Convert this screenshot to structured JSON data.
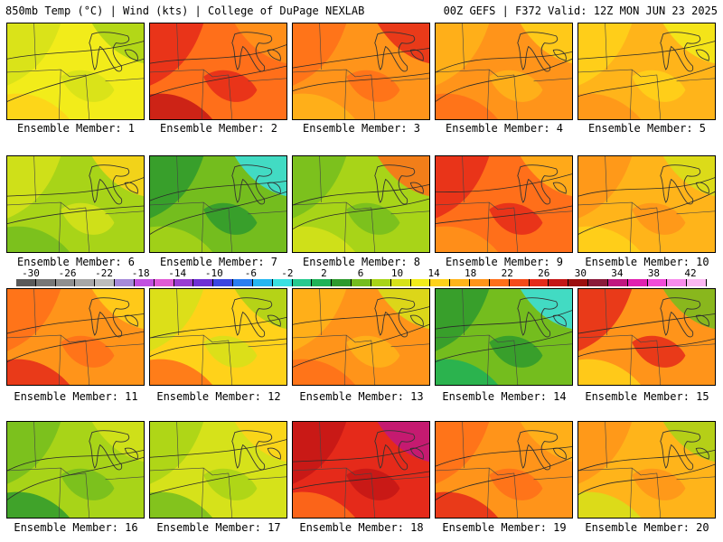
{
  "header": {
    "left_title": "850mb Temp (°C) | Wind (kts) | College of DuPage NEXLAB",
    "right_title": "00Z GEFS | F372 Valid: 12Z MON JUN 23 2025"
  },
  "legend": {
    "ticks": [
      "-30",
      "-26",
      "-22",
      "-18",
      "-14",
      "-10",
      "-6",
      "-2",
      "2",
      "6",
      "10",
      "14",
      "18",
      "22",
      "26",
      "30",
      "34",
      "38",
      "42"
    ],
    "colors": [
      "#5a5a5a",
      "#777777",
      "#8f8f8f",
      "#a7a7a7",
      "#bdbdbd",
      "#a68ad9",
      "#c24fe0",
      "#e05ad6",
      "#9a3cd2",
      "#6f2fd4",
      "#3b46e0",
      "#2a7ef0",
      "#26b6f0",
      "#39e0e0",
      "#27c98f",
      "#1fb257",
      "#2e9a2e",
      "#74bd1e",
      "#a8d418",
      "#d6e21a",
      "#f2ec1a",
      "#ffd21a",
      "#ffb41a",
      "#ff941a",
      "#ff6f1a",
      "#f54b1a",
      "#e52a1a",
      "#c41616",
      "#9c0f0f",
      "#8a1a3a",
      "#c01780",
      "#e020b0",
      "#f04cd8",
      "#f78cec",
      "#fbb8f2"
    ]
  },
  "members": [
    {
      "label": "Ensemble Member: 1",
      "palette": [
        "#f2ec1a",
        "#d6e21a",
        "#ffd21a",
        "#a8d418"
      ]
    },
    {
      "label": "Ensemble Member: 2",
      "palette": [
        "#ff6f1a",
        "#e52a1a",
        "#c41616",
        "#ff941a"
      ]
    },
    {
      "label": "Ensemble Member: 3",
      "palette": [
        "#ff941a",
        "#ff6f1a",
        "#ffb41a",
        "#e52a1a"
      ]
    },
    {
      "label": "Ensemble Member: 4",
      "palette": [
        "#ff941a",
        "#ffb41a",
        "#ff6f1a",
        "#ffd21a"
      ]
    },
    {
      "label": "Ensemble Member: 5",
      "palette": [
        "#ffb41a",
        "#ffd21a",
        "#ff941a",
        "#f2ec1a"
      ]
    },
    {
      "label": "Ensemble Member: 6",
      "palette": [
        "#a8d418",
        "#d6e21a",
        "#74bd1e",
        "#ffd21a"
      ]
    },
    {
      "label": "Ensemble Member: 7",
      "palette": [
        "#74bd1e",
        "#2e9a2e",
        "#a8d418",
        "#39e0e0"
      ]
    },
    {
      "label": "Ensemble Member: 8",
      "palette": [
        "#a8d418",
        "#74bd1e",
        "#d6e21a",
        "#ff6f1a"
      ]
    },
    {
      "label": "Ensemble Member: 9",
      "palette": [
        "#ff6f1a",
        "#e52a1a",
        "#ff941a",
        "#ffb41a"
      ]
    },
    {
      "label": "Ensemble Member: 10",
      "palette": [
        "#ffb41a",
        "#ff941a",
        "#ffd21a",
        "#d6e21a"
      ]
    },
    {
      "label": "Ensemble Member: 11",
      "palette": [
        "#ff941a",
        "#ff6f1a",
        "#e52a1a",
        "#ffd21a"
      ]
    },
    {
      "label": "Ensemble Member: 12",
      "palette": [
        "#ffd21a",
        "#d6e21a",
        "#ff6f1a",
        "#a8d418"
      ]
    },
    {
      "label": "Ensemble Member: 13",
      "palette": [
        "#ff941a",
        "#ffb41a",
        "#ff6f1a",
        "#d6e21a"
      ]
    },
    {
      "label": "Ensemble Member: 14",
      "palette": [
        "#74bd1e",
        "#2e9a2e",
        "#1fb257",
        "#39e0e0"
      ]
    },
    {
      "label": "Ensemble Member: 15",
      "palette": [
        "#ff941a",
        "#e52a1a",
        "#ffd21a",
        "#74bd1e"
      ]
    },
    {
      "label": "Ensemble Member: 16",
      "palette": [
        "#a8d418",
        "#74bd1e",
        "#2e9a2e",
        "#d6e21a"
      ]
    },
    {
      "label": "Ensemble Member: 17",
      "palette": [
        "#d6e21a",
        "#a8d418",
        "#74bd1e",
        "#ffd21a"
      ]
    },
    {
      "label": "Ensemble Member: 18",
      "palette": [
        "#e52a1a",
        "#c41616",
        "#ff6f1a",
        "#c01780"
      ]
    },
    {
      "label": "Ensemble Member: 19",
      "palette": [
        "#ff941a",
        "#ff6f1a",
        "#e52a1a",
        "#ffb41a"
      ]
    },
    {
      "label": "Ensemble Member: 20",
      "palette": [
        "#ffb41a",
        "#ff941a",
        "#d6e21a",
        "#a8d418"
      ]
    }
  ]
}
